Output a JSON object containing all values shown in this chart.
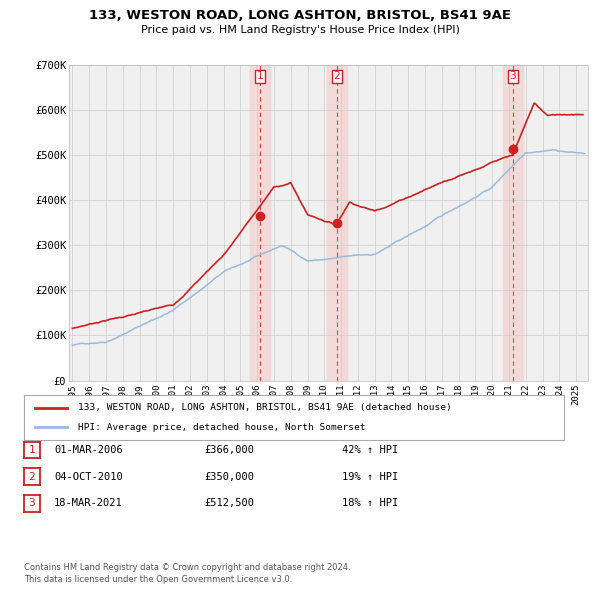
{
  "title_line1": "133, WESTON ROAD, LONG ASHTON, BRISTOL, BS41 9AE",
  "title_line2": "Price paid vs. HM Land Registry's House Price Index (HPI)",
  "legend_label_red": "133, WESTON ROAD, LONG ASHTON, BRISTOL, BS41 9AE (detached house)",
  "legend_label_blue": "HPI: Average price, detached house, North Somerset",
  "footer_line1": "Contains HM Land Registry data © Crown copyright and database right 2024.",
  "footer_line2": "This data is licensed under the Open Government Licence v3.0.",
  "transactions": [
    {
      "num": 1,
      "date": "01-MAR-2006",
      "date_val": 2006.16,
      "price": 366000,
      "label": "£366,000",
      "hpi_pct": "42%"
    },
    {
      "num": 2,
      "date": "04-OCT-2010",
      "date_val": 2010.75,
      "price": 350000,
      "label": "£350,000",
      "hpi_pct": "19%"
    },
    {
      "num": 3,
      "date": "18-MAR-2021",
      "date_val": 2021.21,
      "price": 512500,
      "label": "£512,500",
      "hpi_pct": "18%"
    }
  ],
  "vline_color": "#dd4444",
  "vline_shade_color": "#f5cccc",
  "marker_color": "#cc2222",
  "hpi_line_color": "#99bbdd",
  "price_line_color": "#cc2222",
  "background_color": "#ffffff",
  "plot_bg_color": "#f0f0f0",
  "grid_color": "#cccccc",
  "ylim": [
    0,
    700000
  ],
  "yticks": [
    0,
    100000,
    200000,
    300000,
    400000,
    500000,
    600000,
    700000
  ],
  "ytick_labels": [
    "£0",
    "£100K",
    "£200K",
    "£300K",
    "£400K",
    "£500K",
    "£600K",
    "£700K"
  ],
  "xlim_start": 1994.8,
  "xlim_end": 2025.7,
  "xticks": [
    1995,
    1996,
    1997,
    1998,
    1999,
    2000,
    2001,
    2002,
    2003,
    2004,
    2005,
    2006,
    2007,
    2008,
    2009,
    2010,
    2011,
    2012,
    2013,
    2014,
    2015,
    2016,
    2017,
    2018,
    2019,
    2020,
    2021,
    2022,
    2023,
    2024,
    2025
  ]
}
